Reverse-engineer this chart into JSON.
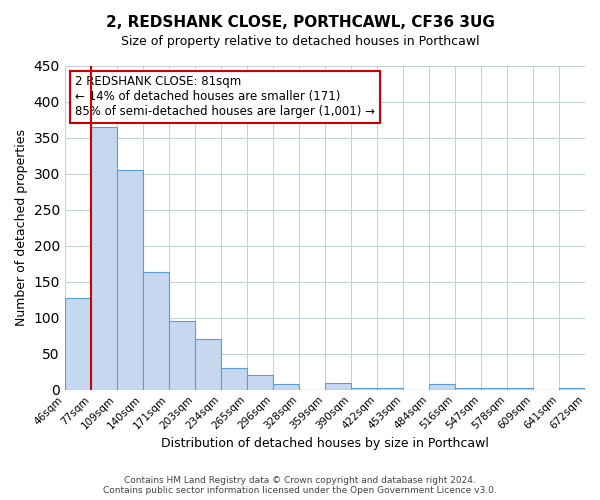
{
  "title": "2, REDSHANK CLOSE, PORTHCAWL, CF36 3UG",
  "subtitle": "Size of property relative to detached houses in Porthcawl",
  "xlabel": "Distribution of detached houses by size in Porthcawl",
  "ylabel": "Number of detached properties",
  "bin_edges": [
    "46sqm",
    "77sqm",
    "109sqm",
    "140sqm",
    "171sqm",
    "203sqm",
    "234sqm",
    "265sqm",
    "296sqm",
    "328sqm",
    "359sqm",
    "390sqm",
    "422sqm",
    "453sqm",
    "484sqm",
    "516sqm",
    "547sqm",
    "578sqm",
    "609sqm",
    "641sqm",
    "672sqm"
  ],
  "bar_heights": [
    128,
    365,
    305,
    163,
    95,
    70,
    30,
    20,
    8,
    0,
    10,
    3,
    3,
    0,
    8,
    2,
    2,
    2,
    0,
    2
  ],
  "bar_color": "#c5d8f0",
  "bar_edge_color": "#5a9fd4",
  "vline_pos": 1,
  "vline_color": "#cc0000",
  "ylim": [
    0,
    450
  ],
  "yticks": [
    0,
    50,
    100,
    150,
    200,
    250,
    300,
    350,
    400,
    450
  ],
  "annotation_title": "2 REDSHANK CLOSE: 81sqm",
  "annotation_line1": "← 14% of detached houses are smaller (171)",
  "annotation_line2": "85% of semi-detached houses are larger (1,001) →",
  "annotation_box_color": "#ffffff",
  "annotation_box_edge": "#cc0000",
  "footer_line1": "Contains HM Land Registry data © Crown copyright and database right 2024.",
  "footer_line2": "Contains public sector information licensed under the Open Government Licence v3.0.",
  "background_color": "#ffffff",
  "grid_color": "#c0cfe0"
}
